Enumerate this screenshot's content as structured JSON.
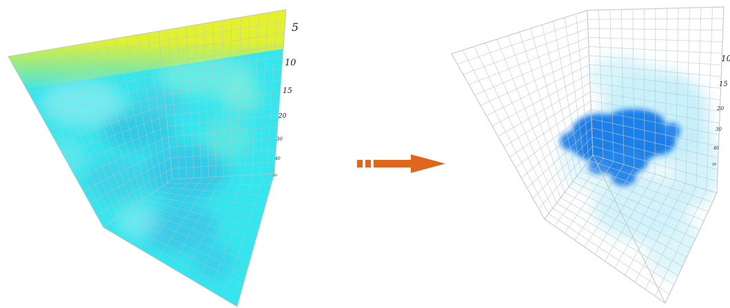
{
  "left_volume": {
    "tick_labels": [
      "5",
      "10",
      "15",
      "20",
      "30",
      "40",
      "50"
    ]
  },
  "right_volume": {
    "tick_labels": [
      "10",
      "15",
      "20",
      "30",
      "40",
      "50"
    ]
  },
  "colors": {
    "yellow": "#f2f21e",
    "cyan": "#2fe6ee",
    "light_cyan": "#bff0fa",
    "blue_core": "#1e7fe8",
    "grid": "#c4c4c4",
    "arrow": "#e0661c"
  },
  "icons": [
    "transition-arrow-icon"
  ]
}
